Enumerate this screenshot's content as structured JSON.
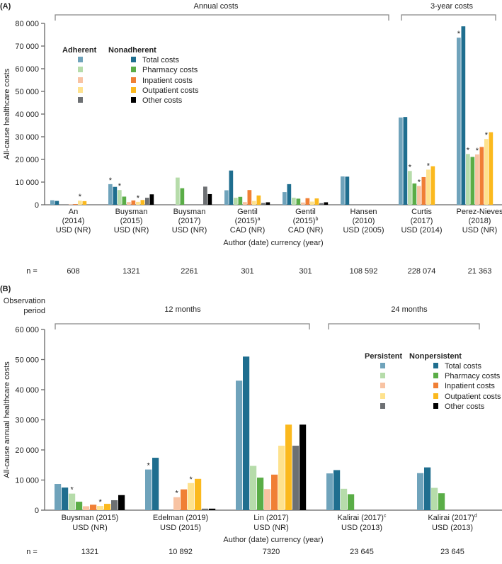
{
  "colors": {
    "adh_total": "#6fa3bb",
    "non_total": "#1f6e8f",
    "adh_pharmacy": "#b6dcaa",
    "non_pharmacy": "#5aad47",
    "adh_inpatient": "#f8c3a3",
    "non_inpatient": "#f07f35",
    "adh_outpatient": "#fee28e",
    "non_outpatient": "#fbb91e",
    "adh_other": "#6d7073",
    "non_other": "#000000"
  },
  "chart_data": [
    {
      "type": "bar",
      "panel_label": "(A)",
      "ylabel": "All-cause healthcare costs",
      "xlabel": "Author (date) currency (year)",
      "ylim": [
        0,
        80000
      ],
      "yticks": [
        {
          "v": 0,
          "label": "0"
        },
        {
          "v": 10000,
          "label": "10 000"
        },
        {
          "v": 20000,
          "label": "20 000"
        },
        {
          "v": 30000,
          "label": "30 000"
        },
        {
          "v": 40000,
          "label": "40 000"
        },
        {
          "v": 50000,
          "label": "50 000"
        },
        {
          "v": 60000,
          "label": "60 000"
        },
        {
          "v": 70000,
          "label": "70 000"
        },
        {
          "v": 80000,
          "label": "80 000"
        }
      ],
      "brackets": [
        {
          "label": "Annual costs",
          "from": 0,
          "to": 5
        },
        {
          "label": "3-year costs",
          "from": 6,
          "to": 7
        }
      ],
      "legend": {
        "placement": "top-left",
        "header_a": "Adherent",
        "header_b": "Nonadherent",
        "items": [
          "Total costs",
          "Pharmacy costs",
          "Inpatient costs",
          "Outpatient costs",
          "Other costs"
        ]
      },
      "series_order": [
        "Adherent total",
        "Nonadherent total",
        "Adherent pharmacy",
        "Nonadherent pharmacy",
        "Adherent inpatient",
        "Nonadherent inpatient",
        "Adherent outpatient",
        "Nonadherent outpatient",
        "Adherent other",
        "Nonadherent other"
      ],
      "n_label": "n =",
      "categories": [
        {
          "l1": "An",
          "l2": "(2014)",
          "sup": "",
          "l3": "USD (NR)",
          "n": "608",
          "values": [
            2000,
            1700,
            null,
            null,
            200,
            300,
            1800,
            1600,
            null,
            null
          ],
          "stars": [
            6
          ]
        },
        {
          "l1": "Buysman",
          "l2": "(2015)",
          "sup": "",
          "l3": "USD (NR)",
          "n": "1321",
          "values": [
            9100,
            7900,
            6500,
            3600,
            1200,
            1900,
            1300,
            2100,
            3100,
            4600
          ],
          "stars": [
            0,
            2,
            6
          ]
        },
        {
          "l1": "Buysman",
          "l2": "(2017)",
          "sup": "",
          "l3": "USD (NR)",
          "n": "2261",
          "values": [
            null,
            null,
            12000,
            7300,
            null,
            null,
            null,
            null,
            8000,
            4700
          ],
          "stars": []
        },
        {
          "l1": "Gentil",
          "l2": "(2015)",
          "sup": "a",
          "l3": "CAD (NR)",
          "n": "301",
          "values": [
            6400,
            15100,
            3100,
            3500,
            1200,
            6500,
            1700,
            4100,
            800,
            1100
          ],
          "stars": []
        },
        {
          "l1": "Gentil",
          "l2": "(2015)",
          "sup": "b",
          "l3": "CAD (NR)",
          "n": "301",
          "values": [
            5600,
            9100,
            3100,
            2700,
            1000,
            2900,
            1400,
            2800,
            700,
            1100
          ],
          "stars": []
        },
        {
          "l1": "Hansen",
          "l2": "(2010)",
          "sup": "",
          "l3": "USD (2005)",
          "n": "108 592",
          "values": [
            12500,
            12400,
            null,
            null,
            null,
            null,
            null,
            null,
            null,
            null
          ],
          "stars": []
        },
        {
          "l1": "Curtis",
          "l2": "(2017)",
          "sup": "",
          "l3": "USD (2014)",
          "n": "228 074",
          "values": [
            38500,
            38700,
            14900,
            9400,
            8300,
            12200,
            15500,
            17000,
            null,
            null
          ],
          "stars": [
            2,
            4,
            6
          ]
        },
        {
          "l1": "Perez-Nieves",
          "l2": "(2018)",
          "sup": "",
          "l3": "USD (NR)",
          "n": "21 363",
          "values": [
            73700,
            78700,
            22400,
            21100,
            22200,
            25500,
            29000,
            32000,
            null,
            null
          ],
          "stars": [
            0,
            2,
            4,
            6
          ]
        }
      ]
    },
    {
      "type": "bar",
      "panel_label": "(B)",
      "period_label_1": "Observation",
      "period_label_2": "period",
      "ylabel": "All-cause annual healthcare costs",
      "xlabel": "Author (date) currency (year)",
      "ylim": [
        0,
        60000
      ],
      "yticks": [
        {
          "v": 0,
          "label": "0"
        },
        {
          "v": 10000,
          "label": "10 000"
        },
        {
          "v": 20000,
          "label": "20 000"
        },
        {
          "v": 30000,
          "label": "30 000"
        },
        {
          "v": 40000,
          "label": "40 000"
        },
        {
          "v": 50000,
          "label": "50 000"
        },
        {
          "v": 60000,
          "label": "60 000"
        }
      ],
      "brackets": [
        {
          "label": "12 months",
          "from": 0,
          "to": 2
        },
        {
          "label": "24 months",
          "from": 3,
          "to": 4
        }
      ],
      "legend": {
        "placement": "top-right",
        "header_a": "Persistent",
        "header_b": "Nonpersistent",
        "items": [
          "Total costs",
          "Pharmacy costs",
          "Inpatient costs",
          "Outpatient costs",
          "Other costs"
        ]
      },
      "series_order": [
        "Persistent total",
        "Nonpersistent total",
        "Persistent pharmacy",
        "Nonpersistent pharmacy",
        "Persistent inpatient",
        "Nonpersistent inpatient",
        "Persistent outpatient",
        "Nonpersistent outpatient",
        "Persistent other",
        "Nonpersistent other"
      ],
      "n_label": "n =",
      "categories": [
        {
          "l1": "Buysman (2015)",
          "sup": "",
          "l3": "USD (NR)",
          "n": "1321",
          "values": [
            8700,
            7500,
            5500,
            2800,
            1300,
            1800,
            1400,
            2100,
            3300,
            5000
          ],
          "stars": [
            2,
            6
          ]
        },
        {
          "l1": "Edelman (2019)",
          "sup": "",
          "l3": "USD (2015)",
          "n": "10 892",
          "values": [
            13500,
            17400,
            null,
            null,
            4300,
            6900,
            9000,
            10400,
            500,
            500
          ],
          "stars": [
            0,
            4,
            6
          ]
        },
        {
          "l1": "Lin (2017)",
          "sup": "",
          "l3": "USD (NR)",
          "n": "7320",
          "values": [
            43000,
            51000,
            14700,
            10800,
            7000,
            11800,
            21400,
            28400,
            21400,
            28400
          ],
          "stars": []
        },
        {
          "l1": "Kalirai (2017)",
          "sup": "c",
          "l3": "USD (2013)",
          "n": "23 645",
          "values": [
            12200,
            13300,
            7100,
            5300,
            null,
            null,
            null,
            null,
            null,
            null
          ],
          "stars": []
        },
        {
          "l1": "Kalirai (2017)",
          "sup": "d",
          "l3": "USD (2013)",
          "n": "23 645",
          "values": [
            12300,
            14200,
            7400,
            5600,
            null,
            null,
            null,
            null,
            null,
            null
          ],
          "stars": []
        }
      ]
    }
  ]
}
